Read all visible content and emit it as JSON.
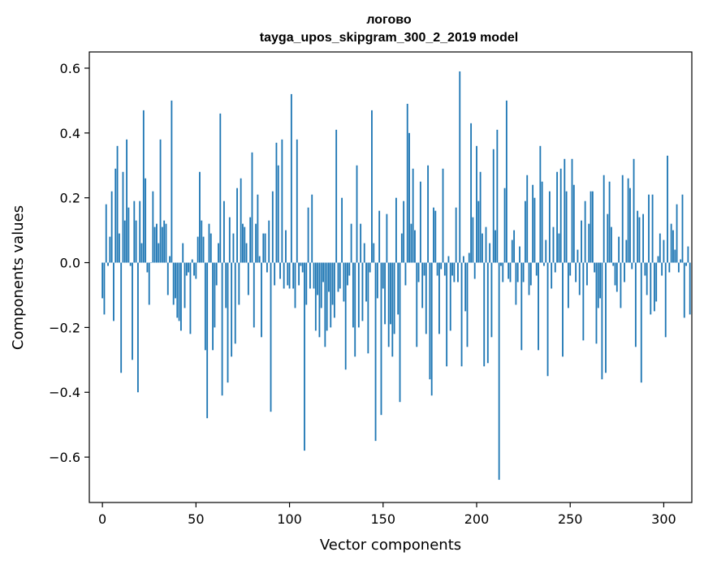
{
  "chart_data": {
    "type": "bar",
    "title_line1": "логово",
    "title_line2": "tayga_upos_skipgram_300_2_2019 model",
    "xlabel": "Vector components",
    "ylabel": "Components values",
    "xlim": [
      -7,
      315
    ],
    "ylim": [
      -0.74,
      0.65
    ],
    "xticks": [
      0,
      50,
      100,
      150,
      200,
      250,
      300
    ],
    "xtick_labels": [
      "0",
      "50",
      "100",
      "150",
      "200",
      "250",
      "300"
    ],
    "yticks": [
      -0.6,
      -0.4,
      -0.2,
      0.0,
      0.2,
      0.4,
      0.6
    ],
    "ytick_labels": [
      "−0.6",
      "−0.4",
      "−0.2",
      "0.0",
      "0.2",
      "0.4",
      "0.6"
    ],
    "bar_color": "#1f77b4",
    "values": [
      -0.11,
      -0.16,
      0.18,
      -0.01,
      0.08,
      0.22,
      -0.18,
      0.29,
      0.36,
      0.09,
      -0.34,
      0.28,
      0.13,
      0.38,
      0.17,
      -0.01,
      -0.3,
      0.19,
      0.13,
      -0.4,
      0.19,
      0.06,
      0.47,
      0.26,
      -0.03,
      -0.13,
      0.0,
      0.22,
      0.11,
      0.12,
      0.06,
      0.38,
      0.11,
      0.13,
      0.12,
      -0.1,
      0.02,
      0.5,
      -0.13,
      -0.11,
      -0.17,
      -0.18,
      -0.21,
      0.06,
      -0.14,
      -0.04,
      -0.03,
      -0.22,
      0.01,
      -0.04,
      -0.05,
      0.08,
      0.28,
      0.13,
      0.08,
      -0.27,
      -0.48,
      0.12,
      0.09,
      -0.27,
      -0.2,
      -0.07,
      0.06,
      0.46,
      -0.41,
      0.19,
      -0.14,
      -0.37,
      0.14,
      -0.29,
      0.09,
      -0.25,
      0.23,
      -0.13,
      0.26,
      0.12,
      0.11,
      0.06,
      -0.1,
      0.14,
      0.34,
      -0.2,
      0.12,
      0.21,
      0.02,
      -0.23,
      0.09,
      0.09,
      -0.03,
      0.13,
      -0.46,
      0.22,
      -0.07,
      0.37,
      0.3,
      -0.05,
      0.38,
      -0.08,
      0.1,
      -0.07,
      -0.08,
      0.52,
      -0.08,
      -0.14,
      0.38,
      -0.07,
      -0.01,
      -0.03,
      -0.58,
      -0.13,
      0.17,
      -0.08,
      0.21,
      -0.08,
      -0.21,
      -0.1,
      -0.23,
      -0.14,
      -0.06,
      -0.26,
      -0.21,
      -0.09,
      -0.2,
      -0.13,
      -0.17,
      0.41,
      -0.09,
      -0.08,
      0.2,
      -0.12,
      -0.33,
      -0.07,
      -0.04,
      0.12,
      -0.2,
      -0.29,
      0.3,
      -0.2,
      0.12,
      -0.18,
      0.06,
      -0.12,
      -0.28,
      -0.03,
      0.47,
      0.06,
      -0.55,
      -0.11,
      0.16,
      -0.47,
      -0.08,
      -0.19,
      0.15,
      -0.26,
      -0.19,
      -0.29,
      -0.22,
      0.2,
      -0.16,
      -0.43,
      0.09,
      0.19,
      -0.07,
      0.49,
      0.4,
      0.12,
      0.29,
      0.1,
      -0.26,
      -0.06,
      0.25,
      -0.14,
      -0.04,
      -0.22,
      0.3,
      -0.36,
      -0.41,
      0.17,
      0.16,
      -0.04,
      -0.22,
      -0.02,
      0.29,
      -0.04,
      -0.32,
      0.02,
      -0.21,
      -0.04,
      -0.06,
      0.17,
      -0.06,
      0.59,
      -0.32,
      0.02,
      -0.15,
      -0.26,
      0.03,
      0.43,
      0.14,
      -0.05,
      0.36,
      0.19,
      0.28,
      0.09,
      -0.32,
      0.11,
      -0.31,
      0.06,
      -0.23,
      0.35,
      0.1,
      0.41,
      -0.67,
      -0.01,
      -0.06,
      0.23,
      0.5,
      -0.05,
      -0.06,
      0.07,
      0.1,
      -0.13,
      -0.06,
      0.05,
      -0.27,
      -0.06,
      0.19,
      0.27,
      -0.1,
      -0.07,
      0.24,
      0.2,
      -0.04,
      -0.27,
      0.36,
      0.25,
      -0.01,
      0.07,
      -0.35,
      0.22,
      -0.08,
      0.11,
      -0.03,
      0.28,
      0.09,
      0.29,
      -0.29,
      0.32,
      0.22,
      -0.14,
      -0.04,
      0.32,
      0.24,
      -0.06,
      0.04,
      -0.1,
      0.13,
      -0.24,
      0.19,
      -0.07,
      0.12,
      0.22,
      0.22,
      -0.03,
      -0.25,
      -0.14,
      -0.11,
      -0.36,
      0.27,
      -0.34,
      0.15,
      0.25,
      0.11,
      -0.01,
      -0.07,
      -0.09,
      0.08,
      -0.14,
      0.27,
      -0.06,
      0.07,
      0.26,
      0.23,
      -0.02,
      0.32,
      -0.26,
      0.16,
      0.14,
      -0.37,
      0.15,
      -0.04,
      -0.1,
      0.21,
      -0.16,
      0.21,
      -0.15,
      -0.12,
      0.02,
      0.09,
      -0.04,
      0.07,
      -0.23,
      0.33,
      -0.03,
      0.12,
      0.1,
      0.04,
      0.18,
      -0.03,
      0.01,
      0.21,
      -0.17,
      -0.01,
      0.05,
      -0.16
    ]
  }
}
